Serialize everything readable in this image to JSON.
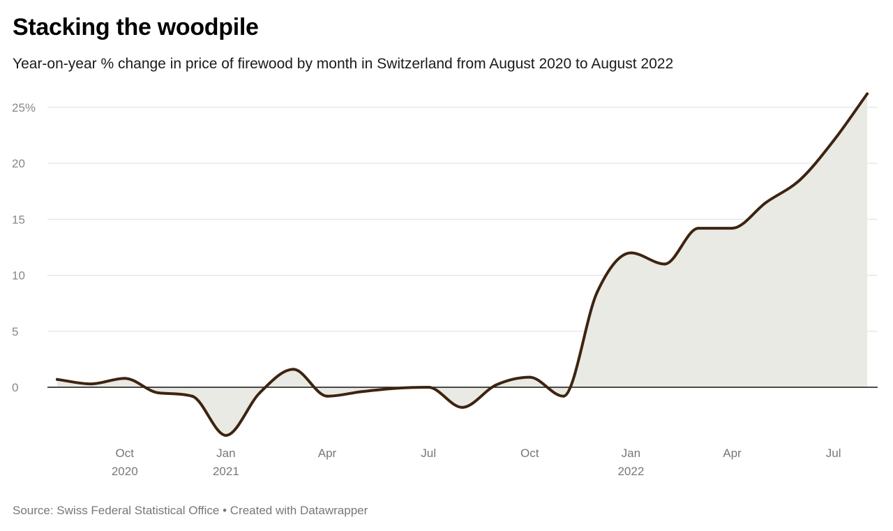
{
  "title": "Stacking the woodpile",
  "subtitle": "Year-on-year % change in price of firewood by month in Switzerland from August 2020 to August 2022",
  "footer": {
    "source": "Source: Swiss Federal Statistical Office",
    "separator": "•",
    "credit": "Created with Datawrapper"
  },
  "colors": {
    "line": "#3d2410",
    "area": "#e9eae4",
    "grid": "#dddddd",
    "zero_line": "#111111"
  },
  "chart_data": {
    "type": "area",
    "x": [
      "2020-08",
      "2020-09",
      "2020-10",
      "2020-11",
      "2020-12",
      "2021-01",
      "2021-02",
      "2021-03",
      "2021-04",
      "2021-05",
      "2021-06",
      "2021-07",
      "2021-08",
      "2021-09",
      "2021-10",
      "2021-11",
      "2021-12",
      "2022-01",
      "2022-02",
      "2022-03",
      "2022-04",
      "2022-05",
      "2022-06",
      "2022-07",
      "2022-08"
    ],
    "series": [
      {
        "values": [
          0.7,
          0.3,
          0.8,
          -0.5,
          -0.8,
          -4.3,
          -0.5,
          1.6,
          -0.8,
          -0.4,
          -0.1,
          0.0,
          -1.8,
          0.2,
          0.9,
          -0.8,
          8.5,
          12.0,
          11.0,
          14.2,
          14.2,
          16.5,
          18.5,
          22.0,
          26.2
        ]
      }
    ],
    "ylim": [
      -4.5,
      26.5
    ],
    "yticks": [
      {
        "value": 0,
        "label": "0"
      },
      {
        "value": 5,
        "label": "5"
      },
      {
        "value": 10,
        "label": "10"
      },
      {
        "value": 15,
        "label": "15"
      },
      {
        "value": 20,
        "label": "20"
      },
      {
        "value": 25,
        "label": "25%"
      }
    ],
    "xticks": [
      {
        "x": "2020-10",
        "label": "Oct",
        "year": "2020"
      },
      {
        "x": "2021-01",
        "label": "Jan",
        "year": "2021"
      },
      {
        "x": "2021-04",
        "label": "Apr",
        "year": ""
      },
      {
        "x": "2021-07",
        "label": "Jul",
        "year": ""
      },
      {
        "x": "2021-10",
        "label": "Oct",
        "year": ""
      },
      {
        "x": "2022-01",
        "label": "Jan",
        "year": "2022"
      },
      {
        "x": "2022-04",
        "label": "Apr",
        "year": ""
      },
      {
        "x": "2022-07",
        "label": "Jul",
        "year": ""
      }
    ],
    "grid": true,
    "legend": "none"
  }
}
